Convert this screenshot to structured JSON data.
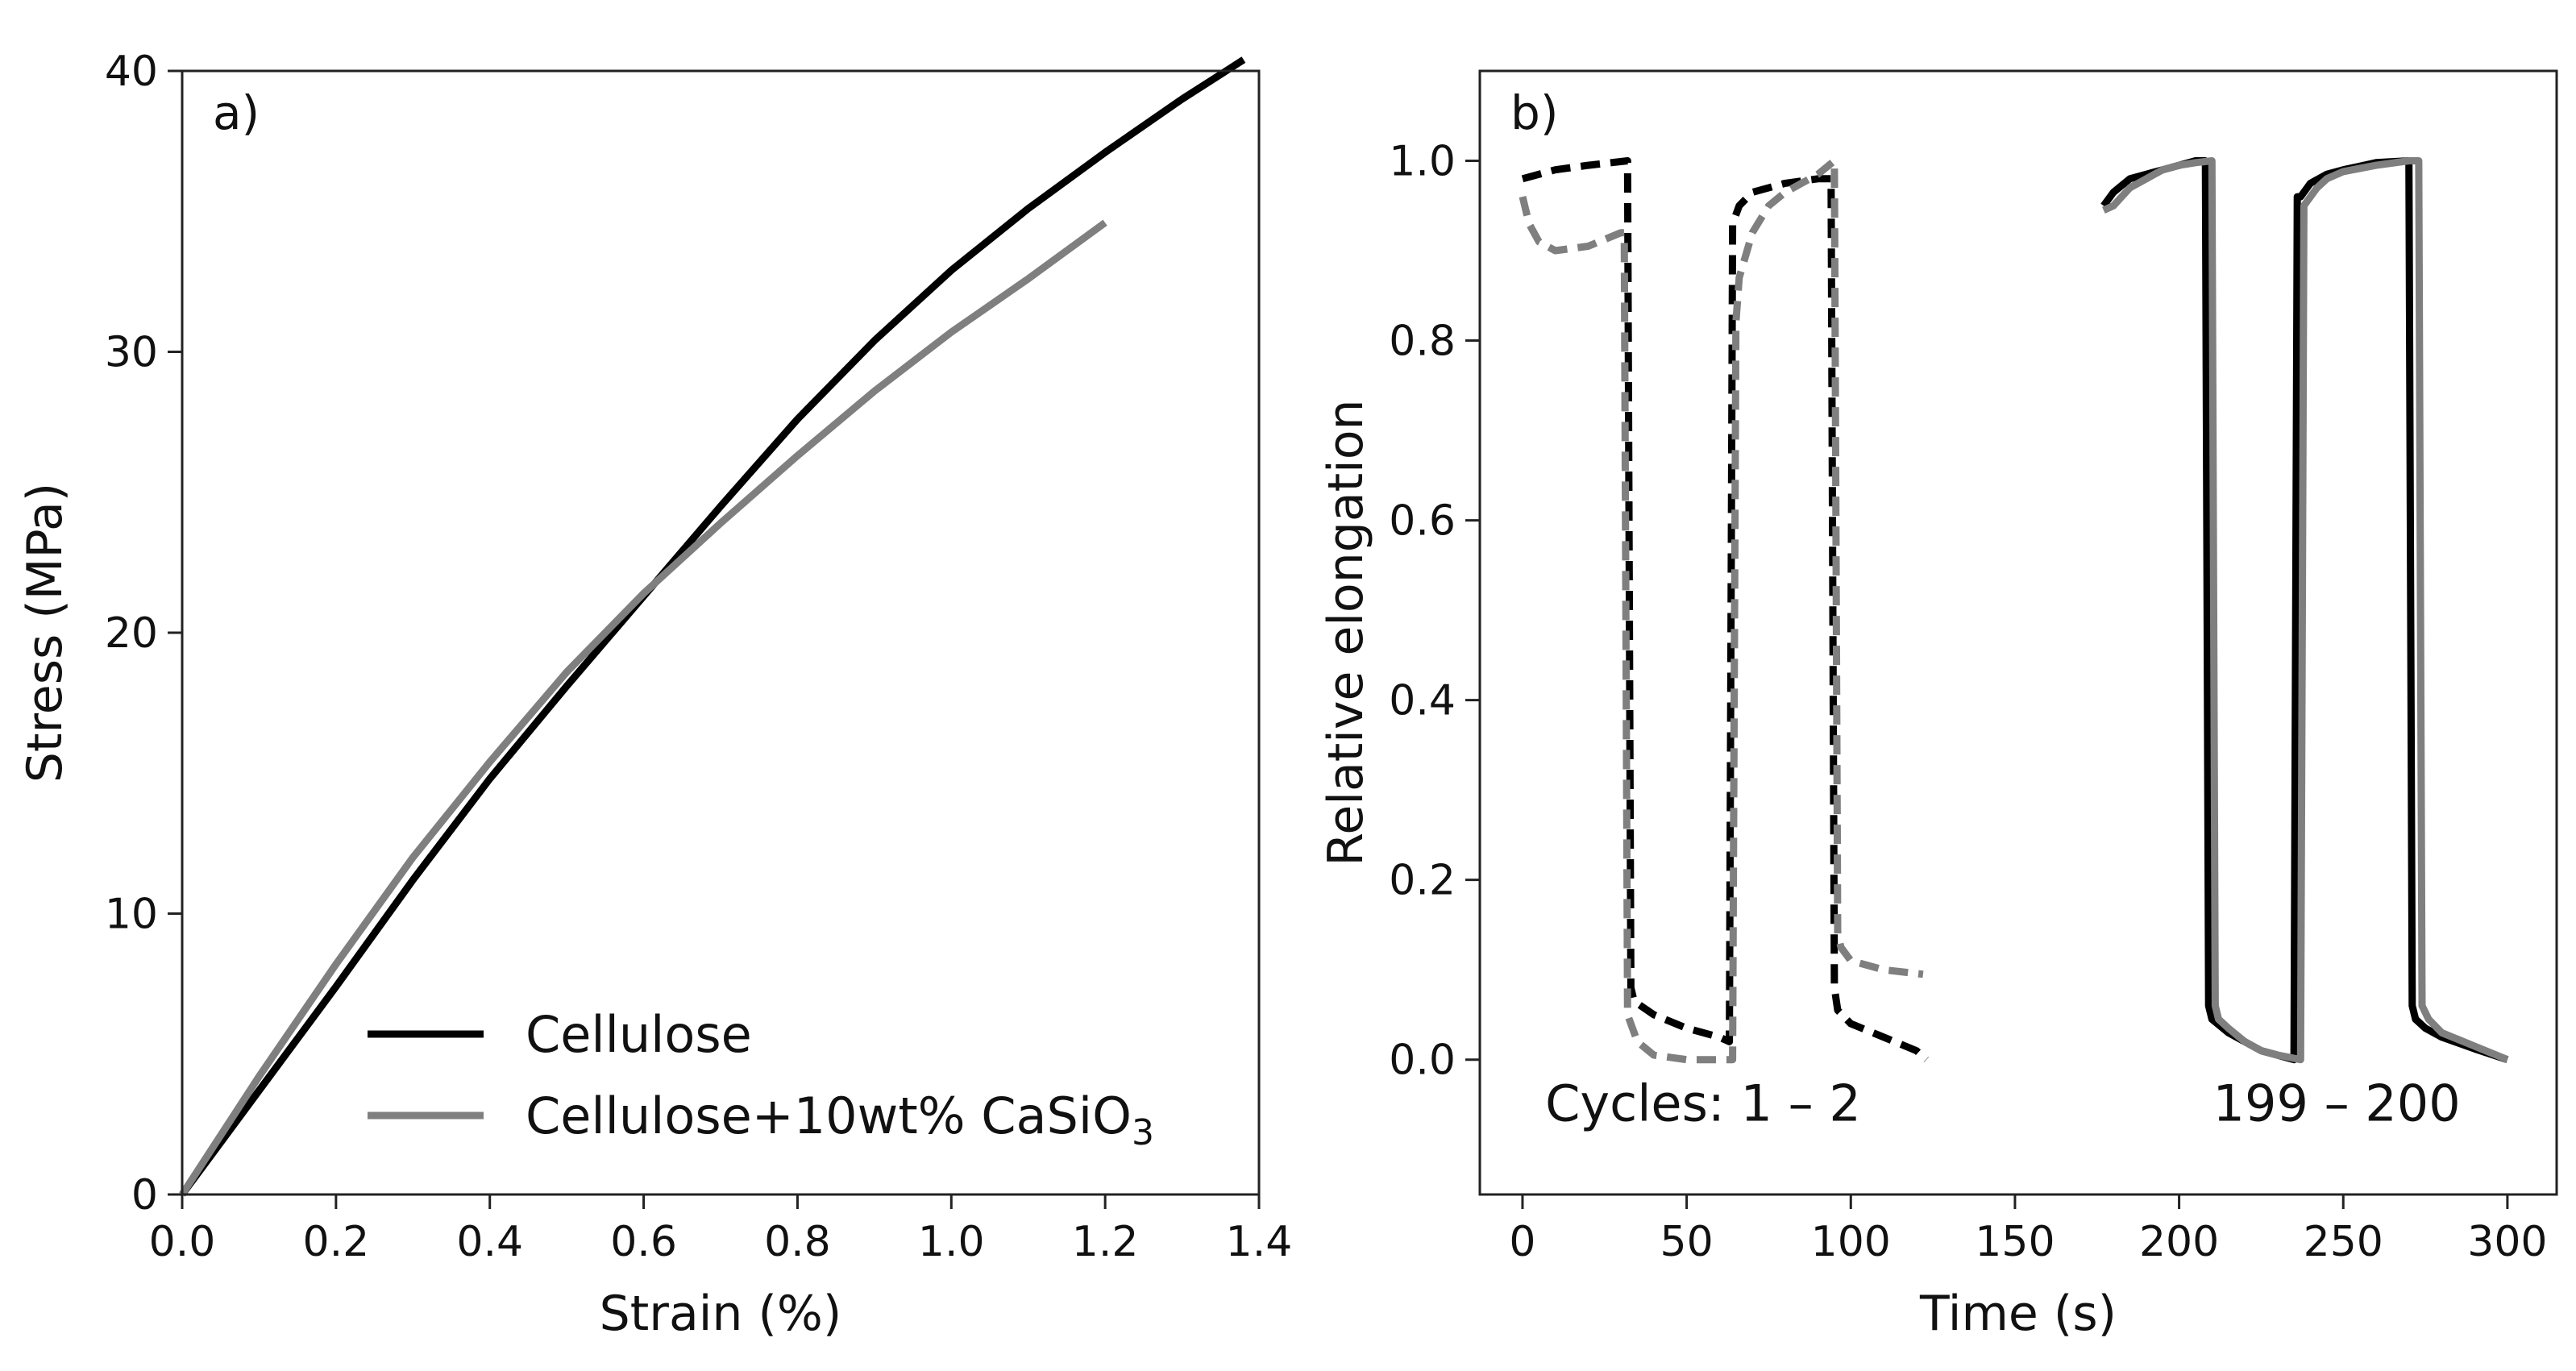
{
  "chart_data": [
    {
      "type": "line",
      "panel_label": "a)",
      "xlabel": "Strain (%)",
      "ylabel": "Stress (MPa)",
      "xlim": [
        0,
        1.4
      ],
      "ylim": [
        0,
        40
      ],
      "xticks": [
        0.0,
        0.2,
        0.4,
        0.6,
        0.8,
        1.0,
        1.2,
        1.4
      ],
      "xtick_labels": [
        "0.0",
        "0.2",
        "0.4",
        "0.6",
        "0.8",
        "1.0",
        "1.2",
        "1.4"
      ],
      "yticks": [
        0,
        10,
        20,
        30,
        40
      ],
      "ytick_labels": [
        "0",
        "10",
        "20",
        "30",
        "40"
      ],
      "legend_position": "lower-right",
      "series": [
        {
          "name": "Cellulose",
          "legend_label": "Cellulose",
          "color": "#000000",
          "dash": "solid",
          "x": [
            0.0,
            0.1,
            0.2,
            0.3,
            0.4,
            0.5,
            0.6,
            0.7,
            0.8,
            0.9,
            1.0,
            1.1,
            1.2,
            1.3,
            1.38
          ],
          "y": [
            0.0,
            3.7,
            7.4,
            11.2,
            14.8,
            18.1,
            21.3,
            24.5,
            27.6,
            30.4,
            32.9,
            35.1,
            37.1,
            39.0,
            40.4
          ]
        },
        {
          "name": "Cellulose+10wt% CaSiO3",
          "legend_label_main": "Cellulose+10wt% CaSiO",
          "legend_label_sub": "3",
          "color": "#7f7f7f",
          "dash": "solid",
          "x": [
            0.0,
            0.1,
            0.2,
            0.3,
            0.4,
            0.5,
            0.6,
            0.7,
            0.8,
            0.9,
            1.0,
            1.1,
            1.2
          ],
          "y": [
            0.0,
            4.2,
            8.2,
            12.0,
            15.4,
            18.6,
            21.4,
            23.9,
            26.3,
            28.6,
            30.7,
            32.6,
            34.6
          ]
        }
      ]
    },
    {
      "type": "line",
      "panel_label": "b)",
      "xlabel": "Time (s)",
      "ylabel": "Relative elongation",
      "xlim": [
        -13,
        315
      ],
      "ylim": [
        -0.15,
        1.1
      ],
      "xticks": [
        0,
        50,
        100,
        150,
        200,
        250,
        300
      ],
      "xtick_labels": [
        "0",
        "50",
        "100",
        "150",
        "200",
        "250",
        "300"
      ],
      "yticks": [
        0.0,
        0.2,
        0.4,
        0.6,
        0.8,
        1.0
      ],
      "ytick_labels": [
        "0.0",
        "0.2",
        "0.4",
        "0.6",
        "0.8",
        "1.0"
      ],
      "annotations": [
        {
          "text": "Cycles: 1 – 2",
          "x": 55,
          "y": -0.05
        },
        {
          "text": "199 – 200",
          "x": 248,
          "y": -0.05
        }
      ],
      "series": [
        {
          "name": "Cellulose cycles 1-2",
          "color": "#000000",
          "dash": "dashed",
          "x": [
            0,
            10,
            20,
            32,
            33,
            34,
            40,
            50,
            60,
            63,
            64,
            66,
            70,
            80,
            90,
            94,
            95,
            96,
            100,
            110,
            120,
            123
          ],
          "y": [
            0.98,
            0.99,
            0.995,
            1.0,
            0.08,
            0.065,
            0.05,
            0.035,
            0.025,
            0.02,
            0.93,
            0.95,
            0.965,
            0.975,
            0.98,
            0.98,
            0.08,
            0.055,
            0.04,
            0.025,
            0.01,
            0.0
          ]
        },
        {
          "name": "Cellulose+CaSiO3 cycles 1-2",
          "color": "#7f7f7f",
          "dash": "dashed",
          "x": [
            0,
            2,
            5,
            10,
            20,
            30,
            31,
            32,
            35,
            40,
            50,
            60,
            64,
            65,
            66,
            70,
            75,
            80,
            90,
            95,
            96,
            97,
            100,
            110,
            122
          ],
          "y": [
            0.96,
            0.93,
            0.91,
            0.9,
            0.905,
            0.92,
            0.92,
            0.05,
            0.02,
            0.005,
            0.0,
            0.0,
            0.0,
            0.82,
            0.87,
            0.92,
            0.95,
            0.965,
            0.985,
            1.0,
            0.14,
            0.125,
            0.11,
            0.1,
            0.095
          ]
        },
        {
          "name": "Cellulose cycles 199-200",
          "color": "#000000",
          "dash": "solid",
          "x": [
            177,
            180,
            185,
            190,
            195,
            200,
            205,
            208,
            209,
            210,
            215,
            220,
            225,
            230,
            235,
            236,
            237,
            240,
            245,
            250,
            260,
            270,
            271,
            272,
            275,
            280,
            290,
            300
          ],
          "y": [
            0.95,
            0.965,
            0.98,
            0.985,
            0.99,
            0.995,
            1.0,
            1.0,
            0.06,
            0.045,
            0.03,
            0.02,
            0.01,
            0.005,
            0.0,
            0.96,
            0.96,
            0.975,
            0.985,
            0.99,
            0.998,
            1.0,
            0.06,
            0.045,
            0.035,
            0.025,
            0.012,
            0.0
          ]
        },
        {
          "name": "Cellulose+CaSiO3 cycles 199-200",
          "color": "#7f7f7f",
          "dash": "solid",
          "x": [
            177,
            180,
            185,
            190,
            195,
            200,
            205,
            210,
            211,
            212,
            215,
            220,
            225,
            230,
            237,
            238,
            239,
            242,
            245,
            250,
            260,
            270,
            273,
            274,
            276,
            280,
            290,
            300
          ],
          "y": [
            0.945,
            0.95,
            0.97,
            0.98,
            0.99,
            0.995,
            0.998,
            1.0,
            0.06,
            0.045,
            0.035,
            0.02,
            0.01,
            0.005,
            0.0,
            0.95,
            0.955,
            0.97,
            0.98,
            0.988,
            0.995,
            1.0,
            1.0,
            0.06,
            0.045,
            0.03,
            0.015,
            0.0
          ]
        }
      ]
    }
  ]
}
